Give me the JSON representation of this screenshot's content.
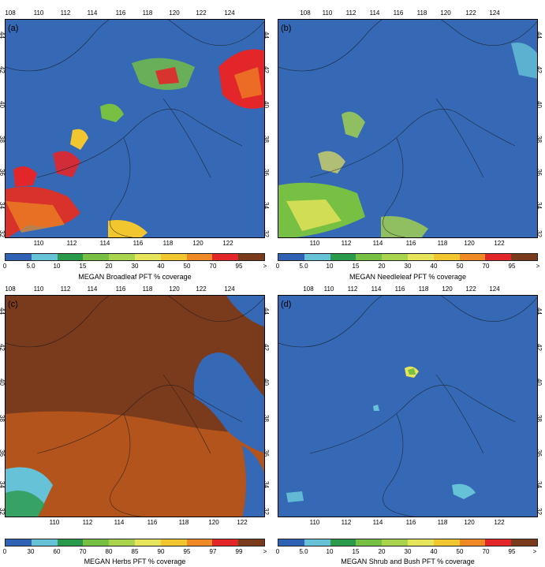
{
  "top_lon_ticks": [
    "108",
    "110",
    "112",
    "114",
    "116",
    "118",
    "120",
    "122",
    "124"
  ],
  "bottom_lon_ticks": [
    "110",
    "112",
    "114",
    "116",
    "118",
    "120",
    "122"
  ],
  "lat_ticks": [
    "44",
    "42",
    "40",
    "38",
    "36",
    "34",
    "32"
  ],
  "colors": {
    "ocean": "#3a6ab8",
    "scale": [
      "#2f62b5",
      "#66c2d7",
      "#2b9a4a",
      "#77c043",
      "#a8d54d",
      "#e6e45a",
      "#f2c62f",
      "#f08a24",
      "#e3262a",
      "#7a3a1c"
    ]
  },
  "panels": [
    {
      "label": "(a)",
      "title": "MEGAN Broadleaf PFT % coverage",
      "scale_labels": [
        "0",
        "5.0",
        "10",
        "15",
        "20",
        "30",
        "40",
        "50",
        "70",
        "95",
        ">"
      ],
      "dominant": "low"
    },
    {
      "label": "(b)",
      "title": "MEGAN Needleleaf PFT % coverage",
      "scale_labels": [
        "0",
        "5.0",
        "10",
        "15",
        "20",
        "30",
        "40",
        "50",
        "70",
        "95",
        ">"
      ],
      "dominant": "low"
    },
    {
      "label": "(c)",
      "title": "MEGAN  Herbs PFT % coverage",
      "scale_labels": [
        "0",
        "30",
        "60",
        "70",
        "80",
        "85",
        "90",
        "95",
        "97",
        "99",
        ">"
      ],
      "dominant": "high"
    },
    {
      "label": "(d)",
      "title": "MEGAN Shrub and Bush PFT % coverage",
      "scale_labels": [
        "0",
        "5.0",
        "10",
        "15",
        "20",
        "30",
        "40",
        "50",
        "70",
        "95",
        ">"
      ],
      "dominant": "low"
    }
  ]
}
